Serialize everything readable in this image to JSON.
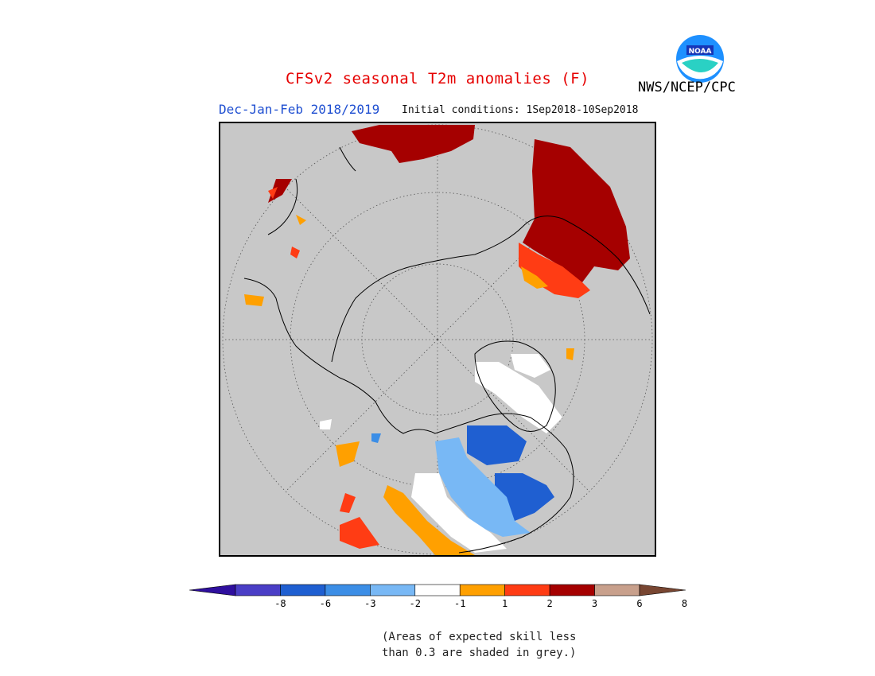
{
  "header": {
    "title": "CFSv2 seasonal T2m anomalies (F)",
    "season": "Dec-Jan-Feb 2018/2019",
    "initial_conditions": "Initial conditions: 1Sep2018-10Sep2018",
    "agency": "NWS/NCEP/CPC",
    "logo_text": "NOAA"
  },
  "map": {
    "projection": "north polar stereographic",
    "missing_color": "#c8c8c8",
    "graticule": "dotted"
  },
  "legend": {
    "bins": [
      {
        "color": "#2f0f9e"
      },
      {
        "color": "#4a3ec6"
      },
      {
        "color": "#1f5fd1"
      },
      {
        "color": "#3c8ee6"
      },
      {
        "color": "#78b8f5"
      },
      {
        "color": "#ffffff"
      },
      {
        "color": "#ffa000"
      },
      {
        "color": "#ff3c14"
      },
      {
        "color": "#a50000"
      },
      {
        "color": "#c8a08c"
      },
      {
        "color": "#784632"
      }
    ],
    "tick_labels": [
      "-8",
      "-6",
      "-3",
      "-2",
      "-1",
      "1",
      "2",
      "3",
      "6",
      "8"
    ]
  },
  "note": {
    "line1": "(Areas of expected skill less",
    "line2": "than 0.3 are shaded in grey.)"
  }
}
